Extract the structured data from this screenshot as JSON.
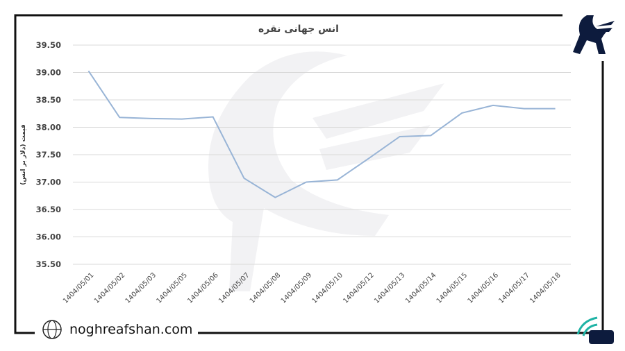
{
  "chart_data": {
    "type": "line",
    "title": "انس جهانی نقره",
    "y_label": "قیمت (دلار بر انس)",
    "categories": [
      "1404/05/01",
      "1404/05/02",
      "1404/05/03",
      "1404/05/05",
      "1404/05/06",
      "1404/05/07",
      "1404/05/08",
      "1404/05/09",
      "1404/05/10",
      "1404/05/12",
      "1404/05/13",
      "1404/05/14",
      "1404/05/15",
      "1404/05/16",
      "1404/05/17",
      "1404/05/18"
    ],
    "series": [
      {
        "color": "#98b4d6",
        "values": [
          39.03,
          38.18,
          38.16,
          38.15,
          38.19,
          37.07,
          36.72,
          37.0,
          37.04,
          37.43,
          37.83,
          37.85,
          38.26,
          38.4,
          38.34,
          38.34
        ]
      }
    ],
    "ylim": [
      35.5,
      39.5
    ],
    "yticks": [
      {
        "value": 35.5,
        "label": "35.50"
      },
      {
        "value": 36,
        "label": "36.00"
      },
      {
        "value": 36.5,
        "label": "36.50"
      },
      {
        "value": 37,
        "label": "37.00"
      },
      {
        "value": 37.5,
        "label": "37.50"
      },
      {
        "value": 38,
        "label": "38.00"
      },
      {
        "value": 38.5,
        "label": "38.50"
      },
      {
        "value": 39,
        "label": "39.00"
      },
      {
        "value": 39.5,
        "label": "39.50"
      }
    ],
    "grid": true
  },
  "footer": {
    "website": "noghreafshan.com"
  }
}
